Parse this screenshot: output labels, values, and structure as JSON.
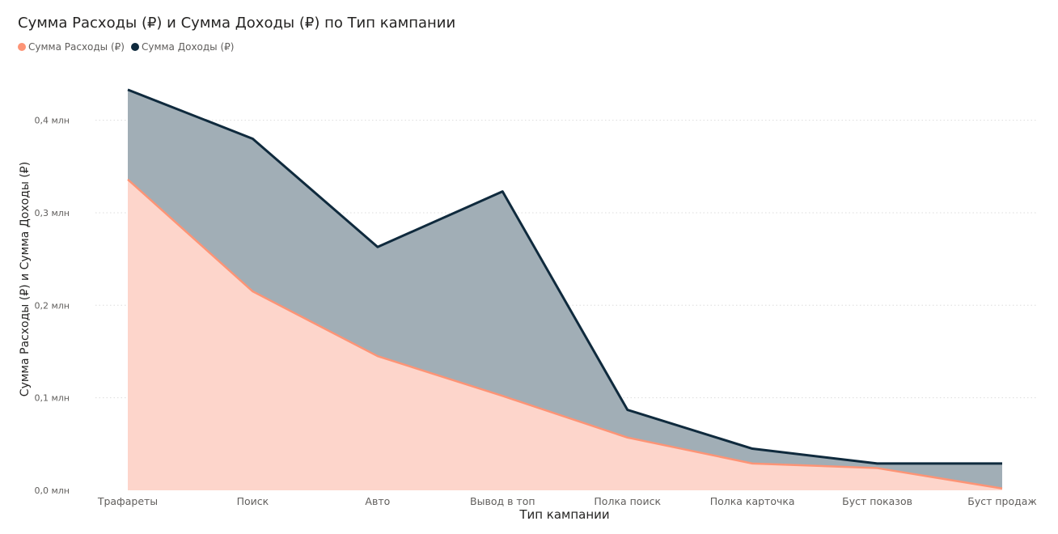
{
  "chart_data": {
    "type": "area",
    "title": "Сумма Расходы (₽) и Сумма Доходы (₽) по Тип кампании",
    "xlabel": "Тип кампании",
    "ylabel": "Сумма Расходы (₽) и Сумма Доходы (₽)",
    "categories": [
      "Трафареты",
      "Поиск",
      "Авто",
      "Вывод в топ",
      "Полка поиск",
      "Полка карточка",
      "Буст показов",
      "Буст продаж"
    ],
    "series": [
      {
        "name": "Сумма Расходы (₽)",
        "color": "#FD9476",
        "fill": "#FDD5CB",
        "values": [
          0.336,
          0.215,
          0.145,
          0.102,
          0.057,
          0.029,
          0.024,
          0.002
        ]
      },
      {
        "name": "Сумма Доходы (₽)",
        "color": "#0F2A3D",
        "fill": "#A1AEB6",
        "values": [
          0.433,
          0.38,
          0.263,
          0.323,
          0.087,
          0.045,
          0.029,
          0.029
        ]
      }
    ],
    "y_ticks": [
      {
        "value": 0.0,
        "label": "0,0 млн"
      },
      {
        "value": 0.1,
        "label": "0,1 млн"
      },
      {
        "value": 0.2,
        "label": "0,2 млн"
      },
      {
        "value": 0.3,
        "label": "0,3 млн"
      },
      {
        "value": 0.4,
        "label": "0,4 млн"
      }
    ],
    "ylim": [
      0,
      0.46
    ],
    "y_unit": "млн ₽",
    "grid": true,
    "legend_position": "top-left"
  }
}
